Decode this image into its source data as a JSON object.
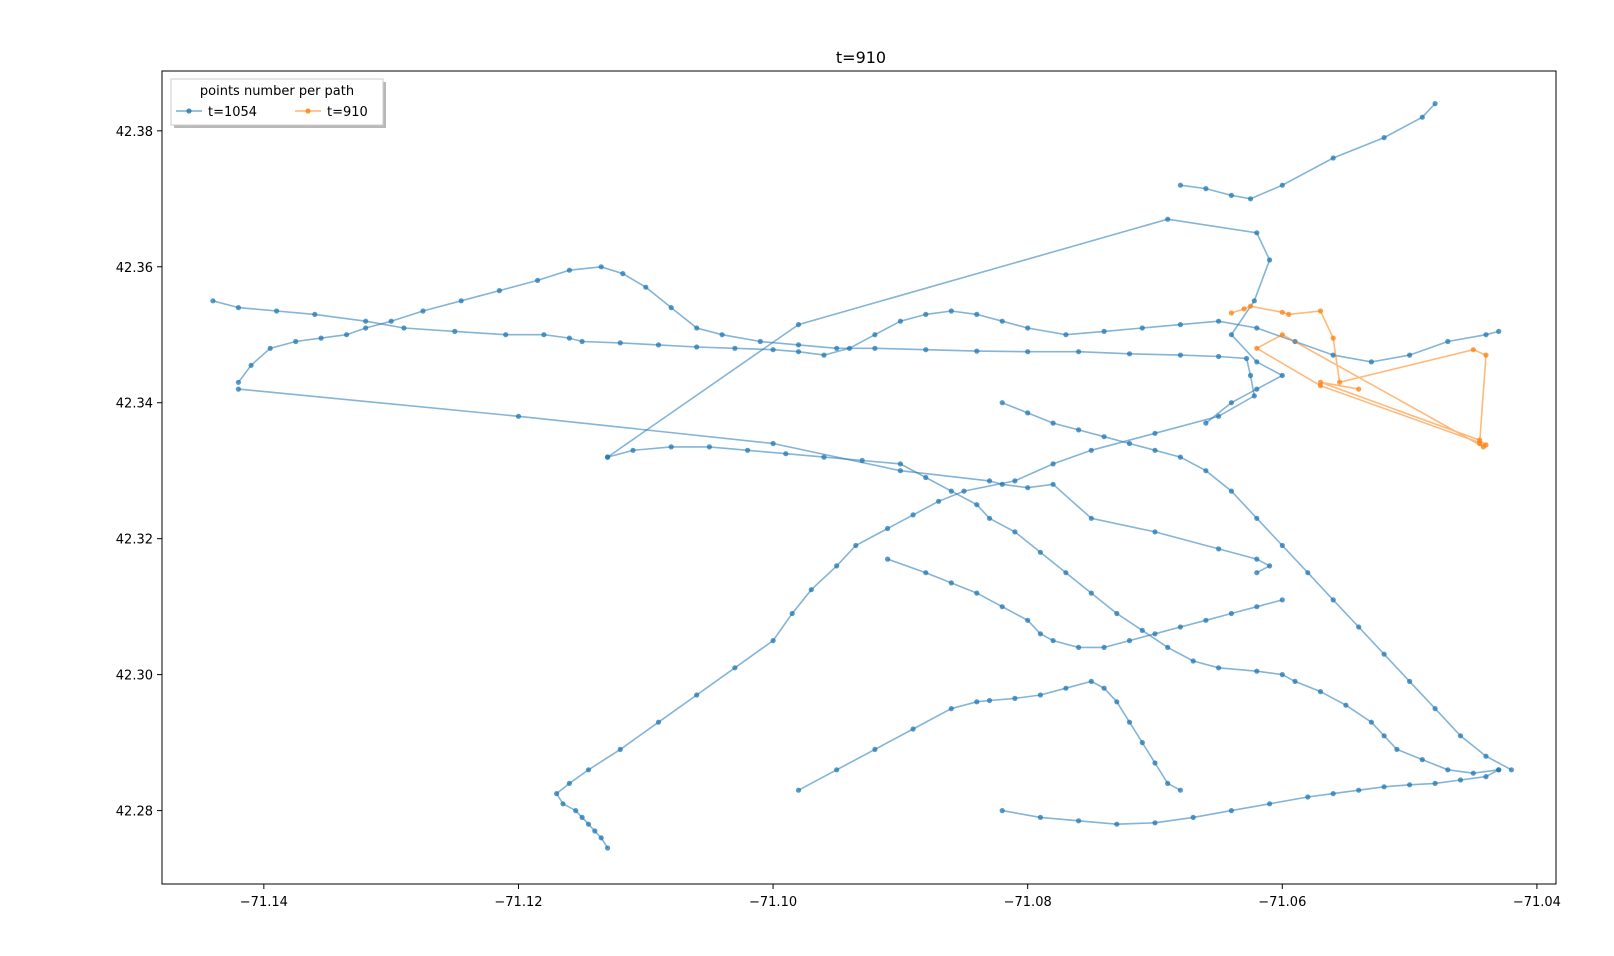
{
  "chart_data": {
    "type": "line",
    "title": "t=910",
    "xlim": [
      -71.148,
      -71.0385
    ],
    "ylim": [
      42.2692,
      42.3888
    ],
    "xticks": [
      -71.14,
      -71.12,
      -71.1,
      -71.08,
      -71.06,
      -71.04
    ],
    "xtick_labels": [
      "−71.14",
      "−71.12",
      "−71.10",
      "−71.08",
      "−71.06",
      "−71.04"
    ],
    "yticks": [
      42.28,
      42.3,
      42.32,
      42.34,
      42.36,
      42.38
    ],
    "ytick_labels": [
      "42.28",
      "42.30",
      "42.32",
      "42.34",
      "42.36",
      "42.38"
    ],
    "grid": false,
    "legend": {
      "title": "points number per path",
      "placement": "top-left",
      "columns": 2
    },
    "series": [
      {
        "name": "t=1054",
        "color": "#1f77b4",
        "marker": "circle",
        "x": [
          -71.142,
          -71.141,
          -71.1395,
          -71.1375,
          -71.1355,
          -71.1335,
          -71.132,
          -71.13,
          -71.1275,
          -71.1245,
          -71.1215,
          -71.1185,
          -71.116,
          -71.1135,
          -71.1118,
          -71.11,
          -71.108,
          -71.106,
          -71.104,
          -71.101,
          -71.098,
          -71.095,
          -71.092,
          -71.088,
          -71.084,
          -71.08,
          -71.076,
          -71.072,
          -71.068,
          -71.065,
          -71.0628,
          -71.0625,
          -71.0622,
          -71.065,
          -71.07,
          -71.075,
          -71.078,
          -71.081,
          -71.085,
          -71.087,
          -71.089,
          -71.091,
          -71.0935,
          -71.095,
          -71.097,
          -71.0985,
          -71.1,
          -71.103,
          -71.106,
          -71.109,
          -71.112,
          -71.1145,
          -71.116,
          -71.117,
          -71.1165,
          -71.1155,
          -71.115,
          -71.1145,
          -71.114,
          -71.1135,
          -71.113
        ],
        "y": [
          42.343,
          42.3455,
          42.348,
          42.349,
          42.3495,
          42.35,
          42.351,
          42.352,
          42.3535,
          42.355,
          42.3565,
          42.358,
          42.3595,
          42.36,
          42.359,
          42.357,
          42.354,
          42.351,
          42.35,
          42.349,
          42.3485,
          42.348,
          42.348,
          42.3478,
          42.3476,
          42.3475,
          42.3475,
          42.3472,
          42.347,
          42.3468,
          42.3465,
          42.344,
          42.341,
          42.338,
          42.3355,
          42.333,
          42.331,
          42.3285,
          42.327,
          42.3255,
          42.3235,
          42.3215,
          42.319,
          42.316,
          42.3125,
          42.309,
          42.305,
          42.301,
          42.297,
          42.293,
          42.289,
          42.286,
          42.284,
          42.2825,
          42.281,
          42.28,
          42.279,
          42.278,
          42.277,
          42.276,
          42.2745
        ]
      },
      {
        "name": "",
        "color": "#1f77b4",
        "marker": "circle",
        "x": [
          -71.144,
          -71.142,
          -71.139,
          -71.136,
          -71.132,
          -71.129,
          -71.125,
          -71.121,
          -71.118,
          -71.116,
          -71.115,
          -71.112,
          -71.109,
          -71.106,
          -71.103,
          -71.1,
          -71.098,
          -71.096,
          -71.094,
          -71.092,
          -71.09,
          -71.088,
          -71.086,
          -71.084,
          -71.082,
          -71.08,
          -71.077,
          -71.074,
          -71.071,
          -71.068,
          -71.065,
          -71.062,
          -71.059,
          -71.056,
          -71.053,
          -71.05,
          -71.047,
          -71.044,
          -71.043
        ],
        "y": [
          42.355,
          42.354,
          42.3535,
          42.353,
          42.352,
          42.351,
          42.3505,
          42.35,
          42.35,
          42.3495,
          42.349,
          42.3488,
          42.3485,
          42.3482,
          42.348,
          42.3478,
          42.3475,
          42.347,
          42.348,
          42.35,
          42.352,
          42.353,
          42.3535,
          42.353,
          42.352,
          42.351,
          42.35,
          42.3505,
          42.351,
          42.3515,
          42.352,
          42.351,
          42.349,
          42.347,
          42.346,
          42.347,
          42.349,
          42.35,
          42.3505
        ]
      },
      {
        "name": "",
        "color": "#1f77b4",
        "marker": "circle",
        "x": [
          -71.113,
          -71.111,
          -71.108,
          -71.105,
          -71.102,
          -71.099,
          -71.096,
          -71.093,
          -71.09,
          -71.088,
          -71.086,
          -71.084,
          -71.083,
          -71.081,
          -71.079,
          -71.077,
          -71.075,
          -71.073,
          -71.071,
          -71.069,
          -71.067,
          -71.065,
          -71.062,
          -71.06,
          -71.059,
          -71.057,
          -71.055,
          -71.053,
          -71.052,
          -71.051,
          -71.049,
          -71.047,
          -71.045,
          -71.043
        ],
        "y": [
          42.332,
          42.333,
          42.3335,
          42.3335,
          42.333,
          42.3325,
          42.332,
          42.3315,
          42.331,
          42.329,
          42.327,
          42.325,
          42.323,
          42.321,
          42.318,
          42.315,
          42.312,
          42.309,
          42.3065,
          42.304,
          42.302,
          42.301,
          42.3005,
          42.3,
          42.299,
          42.2975,
          42.2955,
          42.293,
          42.291,
          42.289,
          42.2875,
          42.286,
          42.2855,
          42.286
        ]
      },
      {
        "name": "",
        "color": "#1f77b4",
        "marker": "circle",
        "x": [
          -71.042,
          -71.044,
          -71.046,
          -71.048,
          -71.05,
          -71.052,
          -71.054,
          -71.056,
          -71.058,
          -71.06,
          -71.062,
          -71.064,
          -71.066,
          -71.068,
          -71.07,
          -71.072,
          -71.074,
          -71.076,
          -71.078,
          -71.08,
          -71.082
        ],
        "y": [
          42.286,
          42.288,
          42.291,
          42.295,
          42.299,
          42.303,
          42.307,
          42.311,
          42.315,
          42.319,
          42.323,
          42.327,
          42.33,
          42.332,
          42.333,
          42.334,
          42.335,
          42.336,
          42.337,
          42.3385,
          42.34
        ]
      },
      {
        "name": "",
        "color": "#1f77b4",
        "marker": "circle",
        "x": [
          -71.082,
          -71.079,
          -71.076,
          -71.073,
          -71.07,
          -71.067,
          -71.064,
          -71.061,
          -71.058,
          -71.056,
          -71.054,
          -71.052,
          -71.05,
          -71.048,
          -71.046,
          -71.044,
          -71.043
        ],
        "y": [
          42.28,
          42.279,
          42.2785,
          42.278,
          42.2782,
          42.279,
          42.28,
          42.281,
          42.282,
          42.2825,
          42.283,
          42.2835,
          42.2838,
          42.284,
          42.2845,
          42.285,
          42.286
        ]
      },
      {
        "name": "",
        "color": "#1f77b4",
        "marker": "circle",
        "x": [
          -71.098,
          -71.095,
          -71.092,
          -71.089,
          -71.086,
          -71.084,
          -71.083,
          -71.081,
          -71.079,
          -71.077,
          -71.075,
          -71.074,
          -71.073,
          -71.072,
          -71.071,
          -71.07,
          -71.069,
          -71.068
        ],
        "y": [
          42.283,
          42.286,
          42.289,
          42.292,
          42.295,
          42.296,
          42.2962,
          42.2965,
          42.297,
          42.298,
          42.299,
          42.298,
          42.296,
          42.293,
          42.29,
          42.287,
          42.284,
          42.283
        ]
      },
      {
        "name": "",
        "color": "#1f77b4",
        "marker": "circle",
        "x": [
          -71.113,
          -71.098,
          -71.069,
          -71.062,
          -71.061,
          -71.0622,
          -71.064,
          -71.062,
          -71.06,
          -71.062,
          -71.064,
          -71.066
        ],
        "y": [
          42.332,
          42.3515,
          42.367,
          42.365,
          42.361,
          42.355,
          42.35,
          42.346,
          42.344,
          42.342,
          42.34,
          42.337
        ]
      },
      {
        "name": "",
        "color": "#1f77b4",
        "marker": "circle",
        "x": [
          -71.068,
          -71.066,
          -71.064,
          -71.0625,
          -71.06,
          -71.056,
          -71.052,
          -71.049,
          -71.048
        ],
        "y": [
          42.372,
          42.3715,
          42.3705,
          42.37,
          42.372,
          42.376,
          42.379,
          42.382,
          42.384
        ]
      },
      {
        "name": "",
        "color": "#1f77b4",
        "marker": "circle",
        "x": [
          -71.142,
          -71.12,
          -71.1,
          -71.09,
          -71.083,
          -71.082,
          -71.08,
          -71.078,
          -71.075,
          -71.07,
          -71.065,
          -71.062,
          -71.061,
          -71.062
        ],
        "y": [
          42.342,
          42.338,
          42.334,
          42.33,
          42.3285,
          42.328,
          42.3275,
          42.328,
          42.323,
          42.321,
          42.3185,
          42.317,
          42.316,
          42.315
        ]
      },
      {
        "name": "",
        "color": "#1f77b4",
        "marker": "circle",
        "x": [
          -71.091,
          -71.088,
          -71.086,
          -71.084,
          -71.082,
          -71.08,
          -71.079,
          -71.078,
          -71.076,
          -71.074,
          -71.072,
          -71.07,
          -71.068,
          -71.066,
          -71.064,
          -71.062,
          -71.06
        ],
        "y": [
          42.317,
          42.315,
          42.3135,
          42.312,
          42.31,
          42.308,
          42.306,
          42.305,
          42.304,
          42.304,
          42.305,
          42.306,
          42.307,
          42.308,
          42.309,
          42.31,
          42.311
        ]
      }
    ]
  },
  "legend_entries": [
    {
      "label": "t=1054",
      "color": "#1f77b4"
    },
    {
      "label": "t=910",
      "color": "#ff7f0e"
    }
  ],
  "orange_series": {
    "name": "t=910",
    "color": "#ff7f0e",
    "x": [
      -71.064,
      -71.063,
      -71.0625,
      -71.06,
      -71.0595,
      -71.057,
      -71.056,
      -71.0555,
      -71.045,
      -71.044,
      -71.0445,
      -71.0442,
      -71.06,
      -71.062,
      -71.057,
      -71.044,
      -71.0445,
      -71.057,
      -71.054
    ],
    "y": [
      42.3532,
      42.3538,
      42.3542,
      42.3533,
      42.353,
      42.3535,
      42.3495,
      42.343,
      42.3478,
      42.347,
      42.334,
      42.3335,
      42.35,
      42.348,
      42.3425,
      42.3338,
      42.3345,
      42.343,
      42.342
    ]
  }
}
